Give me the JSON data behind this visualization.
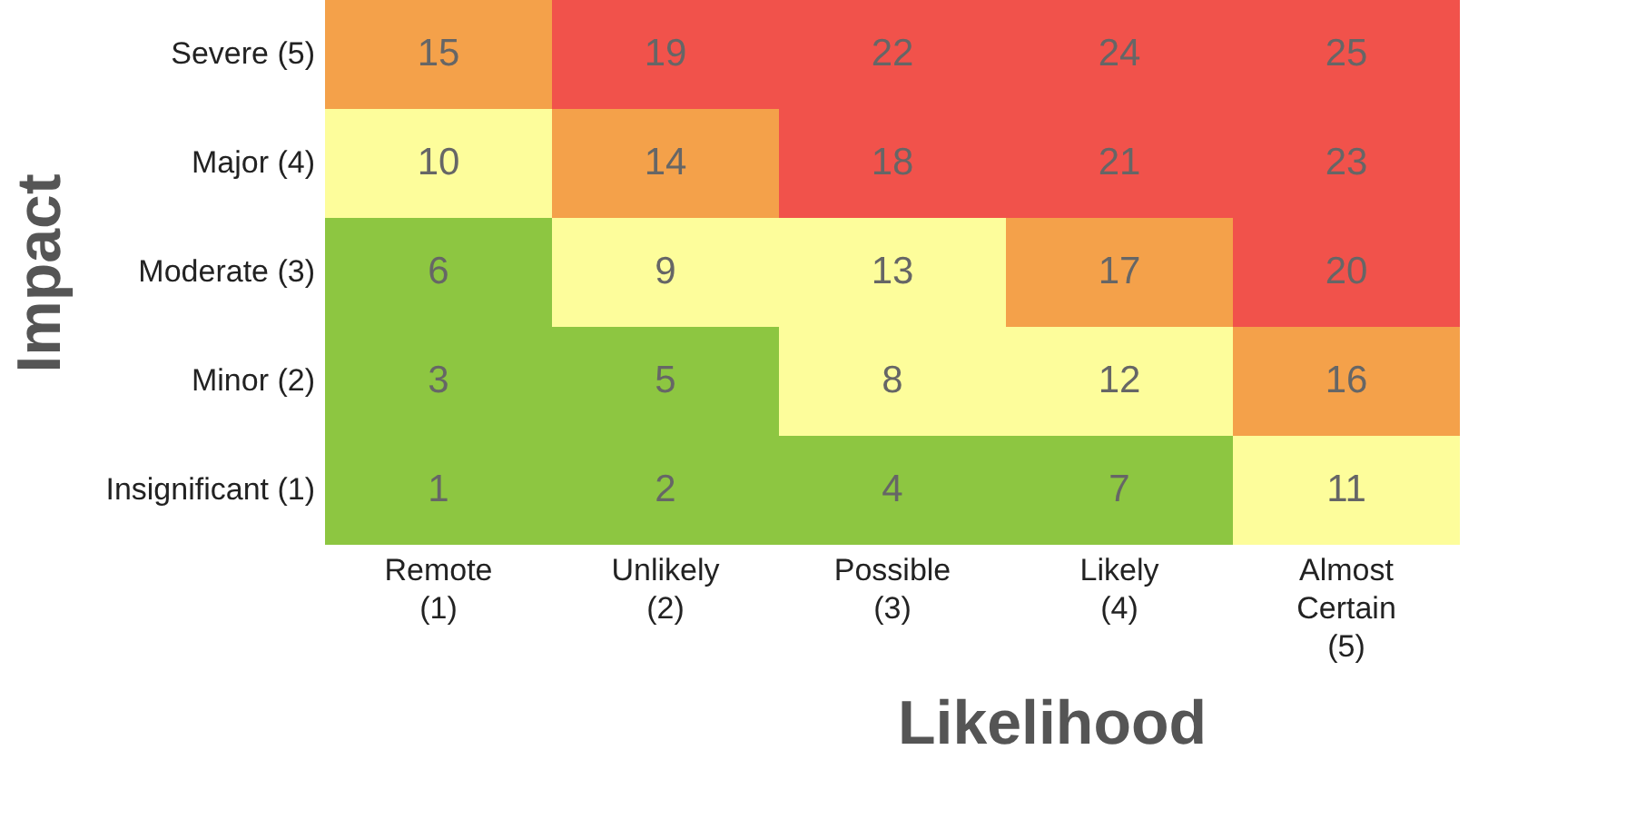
{
  "chart_data": {
    "type": "heatmap",
    "xlabel": "Likelihood",
    "ylabel": "Impact",
    "categories": [
      "Remote (1)",
      "Unlikely (2)",
      "Possible (3)",
      "Likely (4)",
      "Almost Certain (5)"
    ],
    "y_categories": [
      "Severe (5)",
      "Major (4)",
      "Moderate (3)",
      "Minor (2)",
      "Insignificant (1)"
    ],
    "cells": [
      [
        15,
        19,
        22,
        24,
        25
      ],
      [
        10,
        14,
        18,
        21,
        23
      ],
      [
        6,
        9,
        13,
        17,
        20
      ],
      [
        3,
        5,
        8,
        12,
        16
      ],
      [
        1,
        2,
        4,
        7,
        11
      ]
    ],
    "colors": [
      [
        "#f4a14a",
        "#f1524b",
        "#f1524b",
        "#f1524b",
        "#f1524b"
      ],
      [
        "#fdfd9b",
        "#f4a14a",
        "#f1524b",
        "#f1524b",
        "#f1524b"
      ],
      [
        "#8dc641",
        "#fdfd9b",
        "#fdfd9b",
        "#f4a14a",
        "#f1524b"
      ],
      [
        "#8dc641",
        "#8dc641",
        "#fdfd9b",
        "#fdfd9b",
        "#f4a14a"
      ],
      [
        "#8dc641",
        "#8dc641",
        "#8dc641",
        "#8dc641",
        "#fdfd9b"
      ]
    ],
    "data_labels": true
  }
}
